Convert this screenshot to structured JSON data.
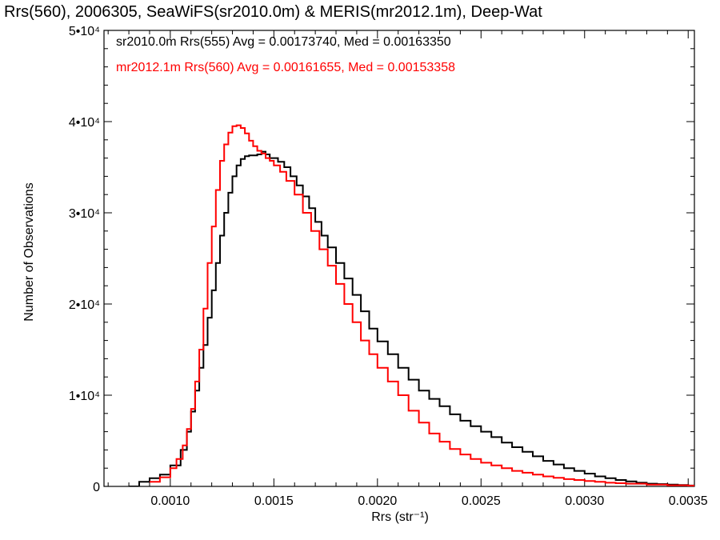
{
  "chart_data": {
    "type": "line",
    "title": "Rrs(560), 2006305, SeaWiFS(sr2010.0m) & MERIS(mr2012.1m), Deep-Wat",
    "xlabel": "Rrs (str⁻¹)",
    "ylabel": "Number of Observations",
    "xlim": [
      0.00068,
      0.00353
    ],
    "ylim": [
      0,
      50000
    ],
    "x_ticks": [
      {
        "value": 0.001,
        "label": "0.0010"
      },
      {
        "value": 0.0015,
        "label": "0.0015"
      },
      {
        "value": 0.002,
        "label": "0.0020"
      },
      {
        "value": 0.0025,
        "label": "0.0025"
      },
      {
        "value": 0.003,
        "label": "0.0030"
      },
      {
        "value": 0.0035,
        "label": "0.0035"
      }
    ],
    "y_ticks": [
      {
        "value": 0,
        "label": "0"
      },
      {
        "value": 10000,
        "label": "1•10⁴"
      },
      {
        "value": 20000,
        "label": "2•10⁴"
      },
      {
        "value": 30000,
        "label": "3•10⁴"
      },
      {
        "value": 40000,
        "label": "4•10⁴"
      },
      {
        "value": 50000,
        "label": "5•10⁴"
      }
    ],
    "grid": false,
    "legend_position": "top-left",
    "series": [
      {
        "name": "sr2010.0m Rrs(555)",
        "color": "#000000",
        "x": [
          0.0008,
          0.00085,
          0.0009,
          0.00095,
          0.001,
          0.00105,
          0.00108,
          0.0011,
          0.00112,
          0.00114,
          0.00116,
          0.00118,
          0.0012,
          0.00122,
          0.00124,
          0.00126,
          0.00128,
          0.0013,
          0.00132,
          0.00134,
          0.00136,
          0.00138,
          0.0014,
          0.00142,
          0.00144,
          0.00146,
          0.00148,
          0.0015,
          0.00152,
          0.00155,
          0.00158,
          0.00161,
          0.00164,
          0.00167,
          0.0017,
          0.00173,
          0.00176,
          0.0018,
          0.00184,
          0.00188,
          0.00192,
          0.00196,
          0.002,
          0.00205,
          0.0021,
          0.00215,
          0.0022,
          0.00225,
          0.0023,
          0.00235,
          0.0024,
          0.00245,
          0.0025,
          0.00255,
          0.0026,
          0.00265,
          0.0027,
          0.00275,
          0.0028,
          0.00285,
          0.0029,
          0.00295,
          0.003,
          0.00305,
          0.0031,
          0.00315,
          0.0032,
          0.00325,
          0.0033,
          0.00335,
          0.0034,
          0.00345,
          0.0035
        ],
        "y": [
          0,
          500,
          900,
          1300,
          2300,
          4000,
          6000,
          8200,
          10500,
          13000,
          15500,
          18500,
          21500,
          24500,
          27500,
          30000,
          32200,
          34000,
          35200,
          35900,
          36200,
          36300,
          36300,
          36400,
          36700,
          36400,
          36000,
          36000,
          35600,
          35000,
          34000,
          33000,
          31800,
          30500,
          29000,
          27500,
          26200,
          24500,
          22800,
          21000,
          19200,
          17300,
          15900,
          14500,
          13000,
          11700,
          10500,
          9600,
          8800,
          7900,
          7200,
          6600,
          6000,
          5400,
          4800,
          4300,
          3800,
          3300,
          2800,
          2400,
          2000,
          1700,
          1400,
          1100,
          900,
          700,
          550,
          400,
          300,
          250,
          200,
          150,
          100
        ]
      },
      {
        "name": "mr2012.1m Rrs(560)",
        "color": "#ff0000",
        "x": [
          0.0009,
          0.00095,
          0.001,
          0.00103,
          0.00106,
          0.00108,
          0.0011,
          0.00112,
          0.00114,
          0.00116,
          0.00118,
          0.0012,
          0.00122,
          0.00124,
          0.00126,
          0.00128,
          0.0013,
          0.00132,
          0.00134,
          0.00136,
          0.00138,
          0.0014,
          0.00142,
          0.00144,
          0.00146,
          0.00148,
          0.0015,
          0.00153,
          0.00156,
          0.0016,
          0.00164,
          0.00168,
          0.00172,
          0.00176,
          0.0018,
          0.00184,
          0.00188,
          0.00192,
          0.00196,
          0.002,
          0.00205,
          0.0021,
          0.00215,
          0.0022,
          0.00225,
          0.0023,
          0.00235,
          0.0024,
          0.00245,
          0.0025,
          0.00255,
          0.0026,
          0.00265,
          0.0027,
          0.00275,
          0.0028,
          0.00285,
          0.0029,
          0.00295,
          0.003,
          0.00305,
          0.0031,
          0.00315,
          0.0032,
          0.0033,
          0.0034,
          0.0035
        ],
        "y": [
          500,
          1000,
          2000,
          3000,
          4500,
          6300,
          8500,
          11500,
          15000,
          19500,
          24500,
          28500,
          32500,
          35700,
          37500,
          38800,
          39500,
          39600,
          39300,
          38700,
          37900,
          37300,
          36800,
          36500,
          36000,
          35700,
          35200,
          34500,
          33500,
          32000,
          30000,
          28000,
          26000,
          24200,
          22200,
          20000,
          18000,
          16000,
          14500,
          13000,
          11500,
          10000,
          8300,
          7000,
          5800,
          4900,
          4100,
          3500,
          3000,
          2600,
          2300,
          2000,
          1700,
          1500,
          1300,
          1100,
          950,
          800,
          700,
          600,
          500,
          400,
          350,
          300,
          200,
          120,
          80
        ]
      }
    ],
    "annotations": [
      {
        "series_index": 0,
        "text": "sr2010.0m Rrs(555) Avg = 0.00173740, Med = 0.00163350",
        "color": "#000000"
      },
      {
        "series_index": 1,
        "text": "mr2012.1m Rrs(560) Avg = 0.00161655, Med = 0.00153358",
        "color": "#ff0000"
      }
    ]
  }
}
